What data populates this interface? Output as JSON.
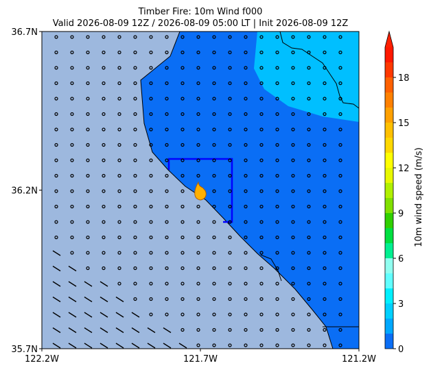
{
  "map": {
    "title": "Timber Fire: 10m Wind f000",
    "subtitle": "Valid 2026-08-09 12Z / 2026-08-09 05:00 LT | Init 2026-08-09 12Z",
    "xlim": [
      -122.2,
      -121.2
    ],
    "ylim": [
      35.7,
      36.7
    ],
    "xticks": [
      {
        "value": -122.2,
        "label": "122.2W"
      },
      {
        "value": -121.7,
        "label": "121.7W"
      },
      {
        "value": -121.2,
        "label": "121.2W"
      }
    ],
    "yticks": [
      {
        "value": 35.7,
        "label": "35.7N"
      },
      {
        "value": 36.2,
        "label": "36.2N"
      },
      {
        "value": 36.7,
        "label": "36.7N"
      }
    ],
    "colorbar": {
      "label": "10m wind speed (m/s)",
      "levels": [
        0,
        1,
        2,
        3,
        4,
        5,
        6,
        7,
        8,
        9,
        10,
        11,
        12,
        13,
        14,
        15,
        16,
        17,
        18,
        19,
        20
      ],
      "colors": [
        "#0a6ef5",
        "#00a8ff",
        "#00d0ff",
        "#00f0ff",
        "#60ffff",
        "#90fff0",
        "#00f090",
        "#00e040",
        "#30d000",
        "#80e000",
        "#b0f000",
        "#e8f800",
        "#ffff00",
        "#ffd800",
        "#ffc000",
        "#ffa000",
        "#ff8000",
        "#ff6000",
        "#ff3800",
        "#ff1800"
      ],
      "extend_color": "#ff2000",
      "ticks": [
        0,
        3,
        6,
        9,
        12,
        15,
        18
      ]
    }
  }
}
